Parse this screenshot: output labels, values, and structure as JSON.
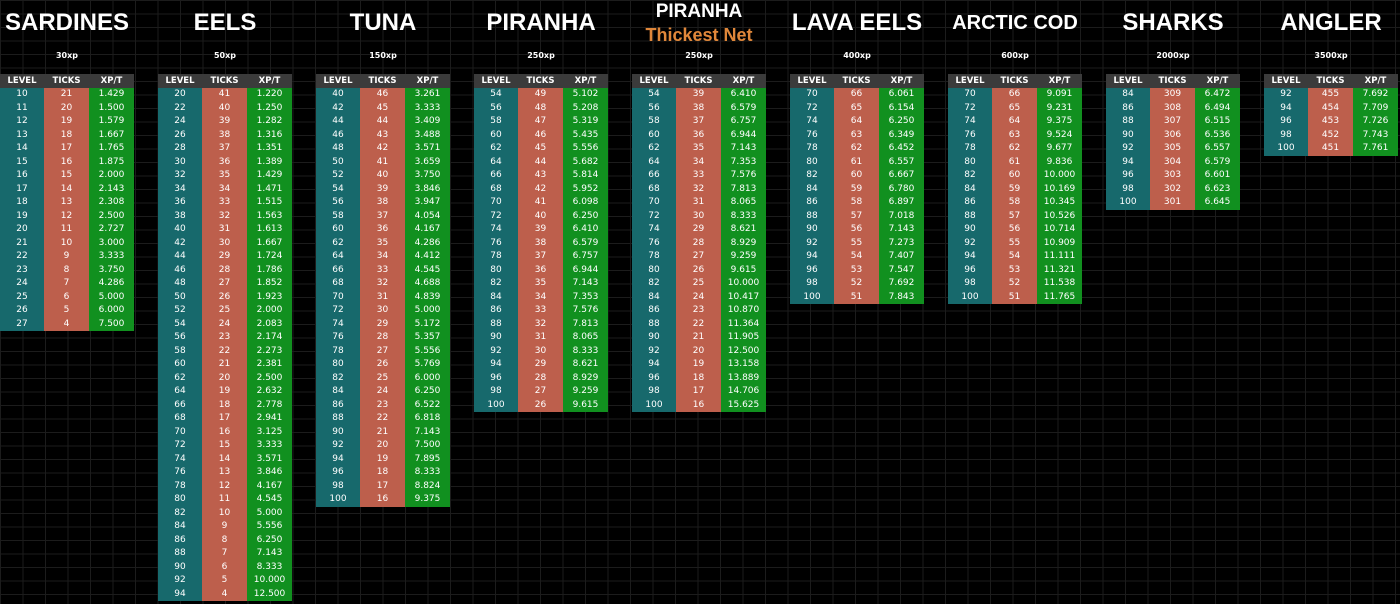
{
  "tables": [
    {
      "title": "SARDINES",
      "xp": "30xp",
      "headers": [
        "LEVEL",
        "TICKS",
        "XP/T"
      ],
      "rows": [
        [
          10,
          21,
          "1.429"
        ],
        [
          11,
          20,
          "1.500"
        ],
        [
          12,
          19,
          "1.579"
        ],
        [
          13,
          18,
          "1.667"
        ],
        [
          14,
          17,
          "1.765"
        ],
        [
          15,
          16,
          "1.875"
        ],
        [
          16,
          15,
          "2.000"
        ],
        [
          17,
          14,
          "2.143"
        ],
        [
          18,
          13,
          "2.308"
        ],
        [
          19,
          12,
          "2.500"
        ],
        [
          20,
          11,
          "2.727"
        ],
        [
          21,
          10,
          "3.000"
        ],
        [
          22,
          9,
          "3.333"
        ],
        [
          23,
          8,
          "3.750"
        ],
        [
          24,
          7,
          "4.286"
        ],
        [
          25,
          6,
          "5.000"
        ],
        [
          26,
          5,
          "6.000"
        ],
        [
          27,
          4,
          "7.500"
        ]
      ]
    },
    {
      "title": "EELS",
      "xp": "50xp",
      "headers": [
        "LEVEL",
        "TICKS",
        "XP/T"
      ],
      "rows": [
        [
          20,
          41,
          "1.220"
        ],
        [
          22,
          40,
          "1.250"
        ],
        [
          24,
          39,
          "1.282"
        ],
        [
          26,
          38,
          "1.316"
        ],
        [
          28,
          37,
          "1.351"
        ],
        [
          30,
          36,
          "1.389"
        ],
        [
          32,
          35,
          "1.429"
        ],
        [
          34,
          34,
          "1.471"
        ],
        [
          36,
          33,
          "1.515"
        ],
        [
          38,
          32,
          "1.563"
        ],
        [
          40,
          31,
          "1.613"
        ],
        [
          42,
          30,
          "1.667"
        ],
        [
          44,
          29,
          "1.724"
        ],
        [
          46,
          28,
          "1.786"
        ],
        [
          48,
          27,
          "1.852"
        ],
        [
          50,
          26,
          "1.923"
        ],
        [
          52,
          25,
          "2.000"
        ],
        [
          54,
          24,
          "2.083"
        ],
        [
          56,
          23,
          "2.174"
        ],
        [
          58,
          22,
          "2.273"
        ],
        [
          60,
          21,
          "2.381"
        ],
        [
          62,
          20,
          "2.500"
        ],
        [
          64,
          19,
          "2.632"
        ],
        [
          66,
          18,
          "2.778"
        ],
        [
          68,
          17,
          "2.941"
        ],
        [
          70,
          16,
          "3.125"
        ],
        [
          72,
          15,
          "3.333"
        ],
        [
          74,
          14,
          "3.571"
        ],
        [
          76,
          13,
          "3.846"
        ],
        [
          78,
          12,
          "4.167"
        ],
        [
          80,
          11,
          "4.545"
        ],
        [
          82,
          10,
          "5.000"
        ],
        [
          84,
          9,
          "5.556"
        ],
        [
          86,
          8,
          "6.250"
        ],
        [
          88,
          7,
          "7.143"
        ],
        [
          90,
          6,
          "8.333"
        ],
        [
          92,
          5,
          "10.000"
        ],
        [
          94,
          4,
          "12.500"
        ]
      ]
    },
    {
      "title": "TUNA",
      "xp": "150xp",
      "headers": [
        "LEVEL",
        "TICKS",
        "XP/T"
      ],
      "rows": [
        [
          40,
          46,
          "3.261"
        ],
        [
          42,
          45,
          "3.333"
        ],
        [
          44,
          44,
          "3.409"
        ],
        [
          46,
          43,
          "3.488"
        ],
        [
          48,
          42,
          "3.571"
        ],
        [
          50,
          41,
          "3.659"
        ],
        [
          52,
          40,
          "3.750"
        ],
        [
          54,
          39,
          "3.846"
        ],
        [
          56,
          38,
          "3.947"
        ],
        [
          58,
          37,
          "4.054"
        ],
        [
          60,
          36,
          "4.167"
        ],
        [
          62,
          35,
          "4.286"
        ],
        [
          64,
          34,
          "4.412"
        ],
        [
          66,
          33,
          "4.545"
        ],
        [
          68,
          32,
          "4.688"
        ],
        [
          70,
          31,
          "4.839"
        ],
        [
          72,
          30,
          "5.000"
        ],
        [
          74,
          29,
          "5.172"
        ],
        [
          76,
          28,
          "5.357"
        ],
        [
          78,
          27,
          "5.556"
        ],
        [
          80,
          26,
          "5.769"
        ],
        [
          82,
          25,
          "6.000"
        ],
        [
          84,
          24,
          "6.250"
        ],
        [
          86,
          23,
          "6.522"
        ],
        [
          88,
          22,
          "6.818"
        ],
        [
          90,
          21,
          "7.143"
        ],
        [
          92,
          20,
          "7.500"
        ],
        [
          94,
          19,
          "7.895"
        ],
        [
          96,
          18,
          "8.333"
        ],
        [
          98,
          17,
          "8.824"
        ],
        [
          100,
          16,
          "9.375"
        ]
      ]
    },
    {
      "title": "PIRANHA",
      "xp": "250xp",
      "headers": [
        "LEVEL",
        "TICKS",
        "XP/T"
      ],
      "rows": [
        [
          54,
          49,
          "5.102"
        ],
        [
          56,
          48,
          "5.208"
        ],
        [
          58,
          47,
          "5.319"
        ],
        [
          60,
          46,
          "5.435"
        ],
        [
          62,
          45,
          "5.556"
        ],
        [
          64,
          44,
          "5.682"
        ],
        [
          66,
          43,
          "5.814"
        ],
        [
          68,
          42,
          "5.952"
        ],
        [
          70,
          41,
          "6.098"
        ],
        [
          72,
          40,
          "6.250"
        ],
        [
          74,
          39,
          "6.410"
        ],
        [
          76,
          38,
          "6.579"
        ],
        [
          78,
          37,
          "6.757"
        ],
        [
          80,
          36,
          "6.944"
        ],
        [
          82,
          35,
          "7.143"
        ],
        [
          84,
          34,
          "7.353"
        ],
        [
          86,
          33,
          "7.576"
        ],
        [
          88,
          32,
          "7.813"
        ],
        [
          90,
          31,
          "8.065"
        ],
        [
          92,
          30,
          "8.333"
        ],
        [
          94,
          29,
          "8.621"
        ],
        [
          96,
          28,
          "8.929"
        ],
        [
          98,
          27,
          "9.259"
        ],
        [
          100,
          26,
          "9.615"
        ]
      ]
    },
    {
      "title": "PIRANHA",
      "subtitle": "Thickest Net",
      "xp": "250xp",
      "headers": [
        "LEVEL",
        "TICKS",
        "XP/T"
      ],
      "rows": [
        [
          54,
          39,
          "6.410"
        ],
        [
          56,
          38,
          "6.579"
        ],
        [
          58,
          37,
          "6.757"
        ],
        [
          60,
          36,
          "6.944"
        ],
        [
          62,
          35,
          "7.143"
        ],
        [
          64,
          34,
          "7.353"
        ],
        [
          66,
          33,
          "7.576"
        ],
        [
          68,
          32,
          "7.813"
        ],
        [
          70,
          31,
          "8.065"
        ],
        [
          72,
          30,
          "8.333"
        ],
        [
          74,
          29,
          "8.621"
        ],
        [
          76,
          28,
          "8.929"
        ],
        [
          78,
          27,
          "9.259"
        ],
        [
          80,
          26,
          "9.615"
        ],
        [
          82,
          25,
          "10.000"
        ],
        [
          84,
          24,
          "10.417"
        ],
        [
          86,
          23,
          "10.870"
        ],
        [
          88,
          22,
          "11.364"
        ],
        [
          90,
          21,
          "11.905"
        ],
        [
          92,
          20,
          "12.500"
        ],
        [
          94,
          19,
          "13.158"
        ],
        [
          96,
          18,
          "13.889"
        ],
        [
          98,
          17,
          "14.706"
        ],
        [
          100,
          16,
          "15.625"
        ]
      ]
    },
    {
      "title": "LAVA EELS",
      "xp": "400xp",
      "headers": [
        "LEVEL",
        "TICKS",
        "XP/T"
      ],
      "rows": [
        [
          70,
          66,
          "6.061"
        ],
        [
          72,
          65,
          "6.154"
        ],
        [
          74,
          64,
          "6.250"
        ],
        [
          76,
          63,
          "6.349"
        ],
        [
          78,
          62,
          "6.452"
        ],
        [
          80,
          61,
          "6.557"
        ],
        [
          82,
          60,
          "6.667"
        ],
        [
          84,
          59,
          "6.780"
        ],
        [
          86,
          58,
          "6.897"
        ],
        [
          88,
          57,
          "7.018"
        ],
        [
          90,
          56,
          "7.143"
        ],
        [
          92,
          55,
          "7.273"
        ],
        [
          94,
          54,
          "7.407"
        ],
        [
          96,
          53,
          "7.547"
        ],
        [
          98,
          52,
          "7.692"
        ],
        [
          100,
          51,
          "7.843"
        ]
      ]
    },
    {
      "title": "ARCTIC COD",
      "xp": "600xp",
      "headers": [
        "LEVEL",
        "TICKS",
        "XP/T"
      ],
      "rows": [
        [
          70,
          66,
          "9.091"
        ],
        [
          72,
          65,
          "9.231"
        ],
        [
          74,
          64,
          "9.375"
        ],
        [
          76,
          63,
          "9.524"
        ],
        [
          78,
          62,
          "9.677"
        ],
        [
          80,
          61,
          "9.836"
        ],
        [
          82,
          60,
          "10.000"
        ],
        [
          84,
          59,
          "10.169"
        ],
        [
          86,
          58,
          "10.345"
        ],
        [
          88,
          57,
          "10.526"
        ],
        [
          90,
          56,
          "10.714"
        ],
        [
          92,
          55,
          "10.909"
        ],
        [
          94,
          54,
          "11.111"
        ],
        [
          96,
          53,
          "11.321"
        ],
        [
          98,
          52,
          "11.538"
        ],
        [
          100,
          51,
          "11.765"
        ]
      ]
    },
    {
      "title": "SHARKS",
      "xp": "2000xp",
      "headers": [
        "LEVEL",
        "TICKS",
        "XP/T"
      ],
      "rows": [
        [
          84,
          309,
          "6.472"
        ],
        [
          86,
          308,
          "6.494"
        ],
        [
          88,
          307,
          "6.515"
        ],
        [
          90,
          306,
          "6.536"
        ],
        [
          92,
          305,
          "6.557"
        ],
        [
          94,
          304,
          "6.579"
        ],
        [
          96,
          303,
          "6.601"
        ],
        [
          98,
          302,
          "6.623"
        ],
        [
          100,
          301,
          "6.645"
        ]
      ]
    },
    {
      "title": "ANGLER",
      "xp": "3500xp",
      "headers": [
        "LEVEL",
        "TICKS",
        "XP/T"
      ],
      "rows": [
        [
          92,
          455,
          "7.692"
        ],
        [
          94,
          454,
          "7.709"
        ],
        [
          96,
          453,
          "7.726"
        ],
        [
          98,
          452,
          "7.743"
        ],
        [
          100,
          451,
          "7.761"
        ]
      ]
    }
  ]
}
